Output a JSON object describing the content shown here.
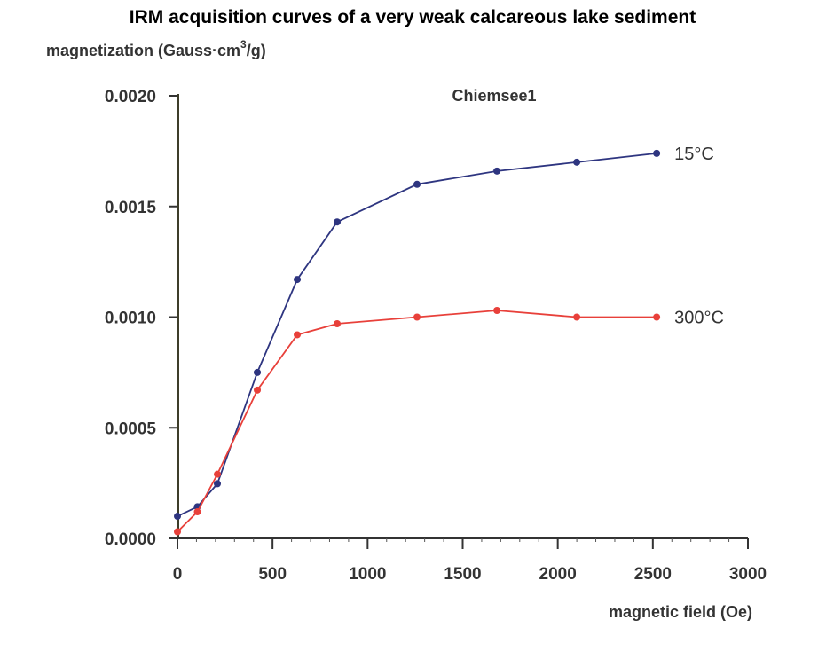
{
  "chart_data": {
    "type": "line",
    "title": "IRM acquisition curves of a very weak calcareous lake sediment",
    "ylabel_prefix": "magnetization (Gauss·cm",
    "ylabel_sup": "3",
    "ylabel_suffix": "/g)",
    "xlabel": "magnetic field (Oe)",
    "annotation": "Chiemsee1",
    "xlim": [
      0,
      3000
    ],
    "ylim": [
      0,
      0.002
    ],
    "xticks": [
      0,
      500,
      1000,
      1500,
      2000,
      2500,
      3000
    ],
    "xtick_labels": [
      "0",
      "500",
      "1000",
      "1500",
      "2000",
      "2500",
      "3000"
    ],
    "yticks": [
      0,
      0.0005,
      0.001,
      0.0015,
      0.002
    ],
    "ytick_labels": [
      "0.0000",
      "0.0005",
      "0.0010",
      "0.0015",
      "0.0020"
    ],
    "grid": false,
    "x": [
      0,
      105,
      210,
      420,
      630,
      840,
      1260,
      1680,
      2100,
      2520
    ],
    "series": [
      {
        "name": "15°C",
        "color": "#2e3580",
        "values": [
          0.0001,
          0.000143,
          0.000247,
          0.00075,
          0.00117,
          0.00143,
          0.0016,
          0.00166,
          0.0017,
          0.00174
        ]
      },
      {
        "name": "300°C",
        "color": "#e8403a",
        "values": [
          3e-05,
          0.00012,
          0.00029,
          0.00067,
          0.00092,
          0.00097,
          0.001,
          0.00103,
          0.001,
          0.001
        ]
      }
    ]
  }
}
